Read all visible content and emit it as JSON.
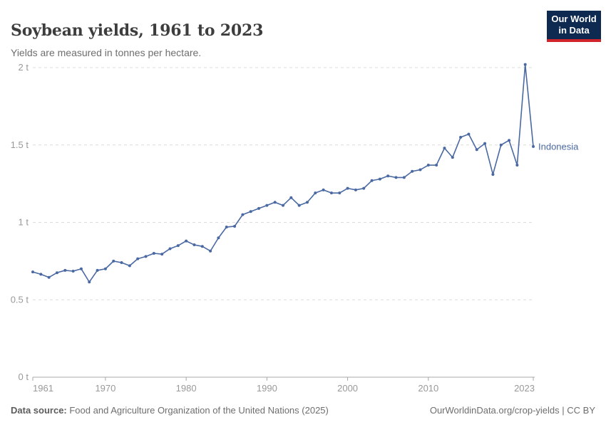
{
  "header": {
    "title": "Soybean yields, 1961 to 2023",
    "subtitle": "Yields are measured in tonnes per hectare.",
    "logo": {
      "line1": "Our World",
      "line2": "in Data",
      "bg_color": "#0e2a51",
      "accent_color": "#d0232a"
    }
  },
  "footer": {
    "source_label": "Data source:",
    "source_text": " Food and Agriculture Organization of the United Nations (2025)",
    "right_text": "OurWorldinData.org/crop-yields | CC BY"
  },
  "chart_data": {
    "type": "line",
    "title": "Soybean yields, 1961 to 2023",
    "ylabel": "tonnes per hectare",
    "unit": "t",
    "xlim": [
      1961,
      2023
    ],
    "ylim": [
      0,
      2
    ],
    "grid": true,
    "gridline_style": "dashed",
    "legend_position": "end-of-line",
    "y_ticks": [
      0,
      0.5,
      1,
      1.5,
      2
    ],
    "y_tick_labels": [
      "0 t",
      "0.5 t",
      "1 t",
      "1.5 t",
      "2 t"
    ],
    "x_ticks": [
      1961,
      1970,
      1980,
      1990,
      2000,
      2010,
      2023
    ],
    "series": [
      {
        "name": "Indonesia",
        "color": "#4a69a2",
        "x": [
          1961,
          1962,
          1963,
          1964,
          1965,
          1966,
          1967,
          1968,
          1969,
          1970,
          1971,
          1972,
          1973,
          1974,
          1975,
          1976,
          1977,
          1978,
          1979,
          1980,
          1981,
          1982,
          1983,
          1984,
          1985,
          1986,
          1987,
          1988,
          1989,
          1990,
          1991,
          1992,
          1993,
          1994,
          1995,
          1996,
          1997,
          1998,
          1999,
          2000,
          2001,
          2002,
          2003,
          2004,
          2005,
          2006,
          2007,
          2008,
          2009,
          2010,
          2011,
          2012,
          2013,
          2014,
          2015,
          2016,
          2017,
          2018,
          2019,
          2020,
          2021,
          2022,
          2023
        ],
        "values": [
          0.68,
          0.665,
          0.645,
          0.675,
          0.69,
          0.685,
          0.7,
          0.615,
          0.69,
          0.7,
          0.75,
          0.74,
          0.72,
          0.765,
          0.78,
          0.8,
          0.795,
          0.83,
          0.85,
          0.88,
          0.855,
          0.845,
          0.815,
          0.9,
          0.97,
          0.975,
          1.05,
          1.07,
          1.09,
          1.11,
          1.13,
          1.11,
          1.16,
          1.11,
          1.13,
          1.19,
          1.21,
          1.19,
          1.19,
          1.22,
          1.21,
          1.22,
          1.27,
          1.28,
          1.3,
          1.29,
          1.29,
          1.33,
          1.34,
          1.37,
          1.37,
          1.48,
          1.42,
          1.55,
          1.57,
          1.47,
          1.51,
          1.31,
          1.5,
          1.53,
          1.37,
          2.02,
          1.49
        ]
      }
    ]
  }
}
